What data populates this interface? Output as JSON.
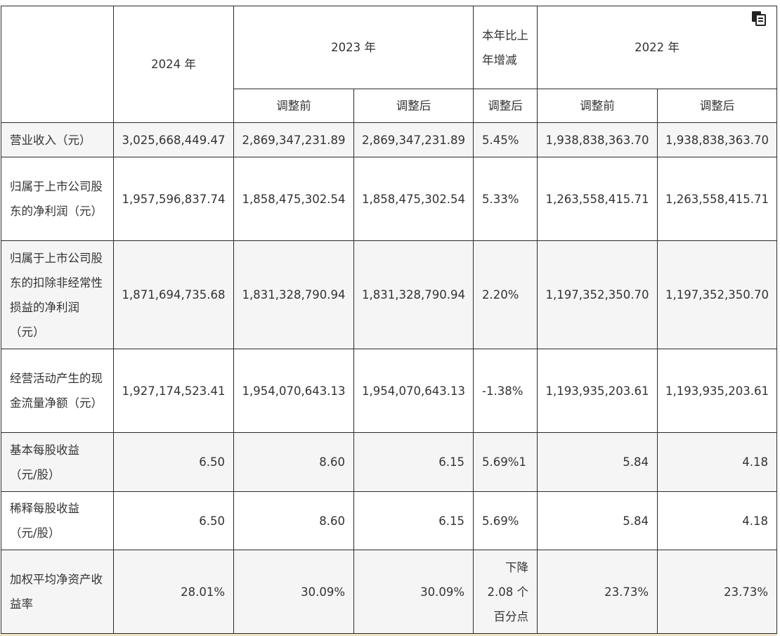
{
  "header": {
    "y2024": "2024 年",
    "y2023": "2023 年",
    "change": "本年比上年增减",
    "y2022": "2022 年",
    "before_adjust": "调整前",
    "after_adjust": "调整后"
  },
  "rows": [
    {
      "label": "营业收入（元）",
      "v2024": "3,025,668,449.47",
      "v2023a": "2,869,347,231.89",
      "v2023b": "2,869,347,231.89",
      "change": "5.45%",
      "v2022a": "1,938,838,363.70",
      "v2022b": "1,938,838,363.70"
    },
    {
      "label": "归属于上市公司股东的净利润（元）",
      "v2024": "1,957,596,837.74",
      "v2023a": "1,858,475,302.54",
      "v2023b": "1,858,475,302.54",
      "change": "5.33%",
      "v2022a": "1,263,558,415.71",
      "v2022b": "1,263,558,415.71"
    },
    {
      "label": "归属于上市公司股东的扣除非经常性损益的净利润（元）",
      "v2024": "1,871,694,735.68",
      "v2023a": "1,831,328,790.94",
      "v2023b": "1,831,328,790.94",
      "change": "2.20%",
      "v2022a": "1,197,352,350.70",
      "v2022b": "1,197,352,350.70"
    },
    {
      "label": "经营活动产生的现金流量净额（元）",
      "v2024": "1,927,174,523.41",
      "v2023a": "1,954,070,643.13",
      "v2023b": "1,954,070,643.13",
      "change": "-1.38%",
      "v2022a": "1,193,935,203.61",
      "v2022b": "1,193,935,203.61"
    },
    {
      "label": "基本每股收益（元/股）",
      "v2024": "6.50",
      "v2023a": "8.60",
      "v2023b": "6.15",
      "change": "5.69%1",
      "v2022a": "5.84",
      "v2022b": "4.18"
    },
    {
      "label": "稀释每股收益（元/股）",
      "v2024": "6.50",
      "v2023a": "8.60",
      "v2023b": "6.15",
      "change": "5.69%",
      "v2022a": "5.84",
      "v2022b": "4.18"
    },
    {
      "label": "加权平均净资产收益率",
      "v2024": "28.01%",
      "v2023a": "30.09%",
      "v2023b": "30.09%",
      "change": "下降 2.08 个百分点",
      "v2022a": "23.73%",
      "v2022b": "23.73%"
    }
  ],
  "icons": {
    "copy": "copy-icon"
  }
}
